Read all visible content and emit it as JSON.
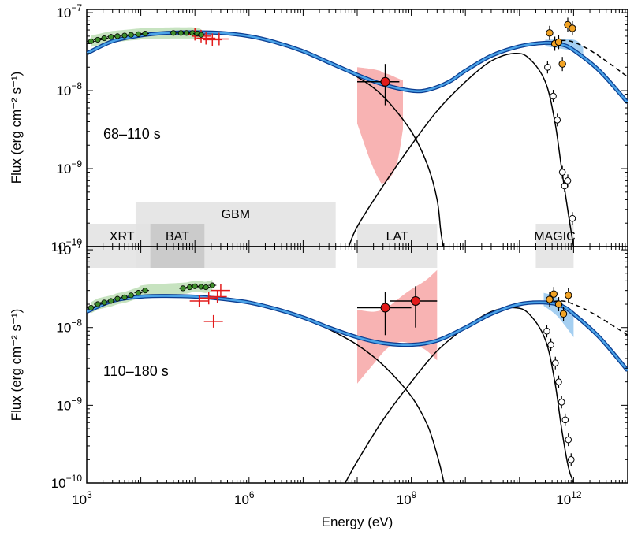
{
  "chart_data": {
    "type": "line",
    "xlabel": "Energy (eV)",
    "ylabel_html": "Flux (erg cm⁻² s⁻¹)",
    "x_ticks": [
      {
        "base": "10",
        "exp": "3",
        "value": 1000
      },
      {
        "base": "10",
        "exp": "6",
        "value": 1000000
      },
      {
        "base": "10",
        "exp": "9",
        "value": 1000000000
      },
      {
        "base": "10",
        "exp": "12",
        "value": 1000000000000
      }
    ],
    "y_ticks": [
      {
        "base": "10",
        "exp": "−10",
        "value": 1e-10
      },
      {
        "base": "10",
        "exp": "−9",
        "value": 1e-09
      },
      {
        "base": "10",
        "exp": "−8",
        "value": 1e-08
      },
      {
        "base": "10",
        "exp": "−7",
        "value": 1e-07
      }
    ],
    "xlim": [
      1000,
      10000000000000
    ],
    "ylim": [
      1e-10,
      1.1e-07
    ],
    "instrument_bands": [
      {
        "name": "XRT",
        "range": [
          1000,
          20000
        ],
        "level": "upper"
      },
      {
        "name": "GBM",
        "range": [
          8000,
          40000000
        ],
        "level": "upper"
      },
      {
        "name": "BAT",
        "range": [
          15000,
          150000
        ],
        "level": "lower"
      },
      {
        "name": "LAT",
        "range": [
          100000000,
          3000000000
        ],
        "level": "upper"
      },
      {
        "name": "MAGIC",
        "range": [
          200000000000,
          1000000000000
        ],
        "level": "upper"
      }
    ],
    "panels": [
      {
        "label": "68–110 s",
        "total_model": {
          "name": "Total (synchrotron + IC)",
          "x": [
            1000,
            3000,
            10000,
            30000,
            100000,
            300000,
            1000000,
            3000000,
            10000000,
            30000000,
            100000000,
            300000000,
            1000000000,
            2000000000,
            5000000000,
            10000000000,
            30000000000,
            100000000000,
            300000000000,
            600000000000,
            1000000000000,
            3000000000000,
            10000000000000
          ],
          "y": [
            3e-08,
            4.3e-08,
            5.1e-08,
            5.5e-08,
            5.6e-08,
            5.5e-08,
            5e-08,
            4.2e-08,
            3.2e-08,
            2.3e-08,
            1.6e-08,
            1.2e-08,
            1e-08,
            1.02e-08,
            1.3e-08,
            1.8e-08,
            2.8e-08,
            3.7e-08,
            4.1e-08,
            3.9e-08,
            3.3e-08,
            1.8e-08,
            7e-09
          ]
        },
        "synchrotron": {
          "name": "Synchrotron",
          "x": [
            1000,
            3000,
            10000,
            30000,
            100000,
            300000,
            1000000,
            3000000,
            10000000,
            30000000,
            100000000,
            300000000,
            1000000000,
            2000000000,
            3000000000,
            3500000000,
            3900000000
          ],
          "y": [
            3e-08,
            4.3e-08,
            5.1e-08,
            5.5e-08,
            5.6e-08,
            5.5e-08,
            5e-08,
            4.2e-08,
            3.2e-08,
            2.3e-08,
            1.5e-08,
            8.5e-09,
            3e-09,
            1.1e-09,
            4e-10,
            1.6e-10,
            1e-10
          ]
        },
        "ic_observed": {
          "name": "IC (observed)",
          "x": [
            70000000,
            100000000,
            300000000,
            1000000000,
            3000000000,
            10000000000,
            30000000000,
            80000000000,
            150000000000,
            300000000000,
            450000000000,
            600000000000,
            800000000000,
            1000000000000
          ],
          "y": [
            1e-10,
            1.8e-10,
            6e-10,
            2e-09,
            5.5e-09,
            1.3e-08,
            2.4e-08,
            3e-08,
            2.6e-08,
            1.3e-08,
            4e-09,
            1e-09,
            2.6e-10,
            1e-10
          ]
        },
        "ic_intrinsic": {
          "name": "IC (intrinsic)",
          "x": [
            300000000000,
            600000000000,
            1000000000000,
            2000000000000,
            4000000000000,
            10000000000000
          ],
          "y": [
            4.1e-08,
            4.4e-08,
            4.2e-08,
            3.3e-08,
            2.4e-08,
            1.5e-08
          ]
        },
        "lat_band": {
          "name": "LAT uncertainty",
          "x": [
            100000000,
            180000000,
            260000000,
            300000000,
            400000000,
            550000000,
            700000000
          ],
          "y_high": [
            2e-08,
            1.9e-08,
            1.8e-08,
            1.7e-08,
            1.6e-08,
            1.45e-08,
            1.35e-08
          ],
          "y_low": [
            3.8e-09,
            1.2e-09,
            7e-10,
            6.5e-10,
            7.5e-10,
            1.2e-09,
            3.2e-09
          ]
        },
        "magic_band": {
          "name": "MAGIC uncertainty",
          "x": [
            300000000000,
            1000000000000,
            1500000000000
          ],
          "y_high": [
            4.5e-08,
            4.5e-08,
            3.6e-08
          ],
          "y_low": [
            3.7e-08,
            3.2e-08,
            2.6e-08
          ]
        },
        "xrt_points": {
          "name": "XRT/BAT",
          "x": [
            1200,
            1600,
            2100,
            2800,
            3700,
            5000,
            6600,
            9000,
            12000,
            40000,
            55000,
            70000,
            90000,
            110000,
            130000
          ],
          "y": [
            4.3e-08,
            4.5e-08,
            4.7e-08,
            4.9e-08,
            5e-08,
            5.1e-08,
            5.2e-08,
            5.3e-08,
            5.4e-08,
            5.5e-08,
            5.5e-08,
            5.5e-08,
            5.5e-08,
            5.4e-08,
            5.2e-08
          ]
        },
        "gbm_points": {
          "name": "GBM",
          "x": [
            100000,
            130000,
            160000,
            210000,
            280000
          ],
          "y": [
            5.3e-08,
            5e-08,
            4.7e-08,
            4.5e-08,
            4.6e-08
          ]
        },
        "lat_points": {
          "name": "LAT",
          "x": [
            330000000
          ],
          "y": [
            1.3e-08
          ],
          "xlow": [
            100000000
          ],
          "xhigh": [
            600000000
          ],
          "ylow": [
            6.5e-09
          ],
          "yhigh": [
            2.2e-08
          ]
        },
        "magic_observed": {
          "name": "MAGIC observed",
          "x": [
            330000000000,
            420000000000,
            500000000000,
            620000000000,
            680000000000,
            780000000000,
            950000000000
          ],
          "y": [
            2e-08,
            8.5e-09,
            4.2e-09,
            9e-10,
            6e-10,
            7e-10,
            2.3e-10
          ]
        },
        "magic_deabsorbed": {
          "name": "MAGIC intrinsic",
          "x": [
            360000000000,
            450000000000,
            530000000000,
            620000000000,
            780000000000,
            950000000000
          ],
          "y": [
            5.5e-08,
            4e-08,
            4.2e-08,
            2.2e-08,
            7e-08,
            6.3e-08
          ]
        }
      },
      {
        "label": "110–180 s",
        "total_model": {
          "name": "Total (synchrotron + IC)",
          "x": [
            1000,
            3000,
            10000,
            30000,
            100000,
            300000,
            1000000,
            3000000,
            10000000,
            30000000,
            100000000,
            300000000,
            1000000000,
            3000000000,
            10000000000,
            30000000000,
            100000000000,
            300000000000,
            600000000000,
            1000000000000,
            3000000000000,
            10000000000000
          ],
          "y": [
            1.6e-08,
            2.2e-08,
            2.5e-08,
            2.55e-08,
            2.5e-08,
            2.35e-08,
            2.1e-08,
            1.75e-08,
            1.35e-08,
            1e-08,
            7.5e-09,
            6.3e-09,
            6e-09,
            6.8e-09,
            1e-08,
            1.5e-08,
            2e-08,
            2.1e-08,
            1.9e-08,
            1.5e-08,
            7.5e-09,
            2.8e-09
          ]
        },
        "synchrotron": {
          "name": "Synchrotron",
          "x": [
            1000,
            3000,
            10000,
            30000,
            100000,
            300000,
            1000000,
            3000000,
            10000000,
            30000000,
            100000000,
            300000000,
            1000000000,
            2000000000,
            3000000000,
            3700000000,
            4000000000
          ],
          "y": [
            1.6e-08,
            2.2e-08,
            2.5e-08,
            2.55e-08,
            2.5e-08,
            2.35e-08,
            2.1e-08,
            1.75e-08,
            1.35e-08,
            9.5e-09,
            6e-09,
            3.3e-09,
            1.3e-09,
            5.5e-10,
            2.3e-10,
            1.3e-10,
            1e-10
          ]
        },
        "ic_observed": {
          "name": "IC (observed)",
          "x": [
            60000000,
            100000000,
            300000000,
            1000000000,
            3000000000,
            10000000000,
            30000000000,
            80000000000,
            150000000000,
            300000000000,
            450000000000,
            600000000000,
            800000000000,
            1000000000000
          ],
          "y": [
            1e-10,
            1.9e-10,
            6.5e-10,
            2e-09,
            5e-09,
            1e-08,
            1.6e-08,
            1.8e-08,
            1.5e-08,
            7e-09,
            2e-09,
            5e-10,
            1.6e-10,
            1e-10
          ]
        },
        "ic_intrinsic": {
          "name": "IC (intrinsic)",
          "x": [
            300000000000,
            600000000000,
            1000000000000,
            2000000000000,
            4000000000000,
            10000000000000
          ],
          "y": [
            2.1e-08,
            2.2e-08,
            2e-08,
            1.6e-08,
            1.2e-08,
            8e-09
          ]
        },
        "lat_band": {
          "name": "LAT uncertainty",
          "x": [
            100000000,
            200000000,
            350000000,
            600000000,
            1000000000,
            1800000000,
            3000000000
          ],
          "y_high": [
            1.7e-08,
            1.6e-08,
            1.8e-08,
            2.4e-08,
            3.1e-08,
            4e-08,
            5.5e-08
          ],
          "y_low": [
            1.9e-09,
            3.4e-09,
            5.3e-09,
            6.5e-09,
            6.2e-09,
            5.2e-09,
            3.8e-09
          ]
        },
        "magic_band": {
          "name": "MAGIC uncertainty",
          "x": [
            280000000000,
            500000000000,
            1000000000000
          ],
          "y_high": [
            2.8e-08,
            2.4e-08,
            1.4e-08
          ],
          "y_low": [
            1.9e-08,
            1.4e-08,
            7.5e-09
          ]
        },
        "xrt_points": {
          "name": "XRT/BAT",
          "x": [
            1200,
            1600,
            2100,
            2800,
            3700,
            5000,
            6600,
            9000,
            12000,
            60000,
            80000,
            100000,
            130000,
            160000,
            210000
          ],
          "y": [
            1.8e-08,
            2e-08,
            2.1e-08,
            2.2e-08,
            2.35e-08,
            2.45e-08,
            2.6e-08,
            2.8e-08,
            3e-08,
            3.2e-08,
            3.3e-08,
            3.4e-08,
            3.35e-08,
            3.3e-08,
            3.5e-08
          ]
        },
        "gbm_points": {
          "name": "GBM",
          "x": [
            120000,
            180000,
            220000,
            260000,
            300000
          ],
          "y": [
            2.2e-08,
            2.4e-08,
            1.2e-08,
            2.5e-08,
            3e-08
          ]
        },
        "lat_points": {
          "name": "LAT",
          "x": [
            330000000,
            1200000000
          ],
          "y": [
            1.8e-08,
            2.2e-08
          ],
          "xlow": [
            100000000,
            400000000
          ],
          "xhigh": [
            1000000000,
            3000000000
          ],
          "ylow": [
            8e-09,
            1e-08
          ],
          "yhigh": [
            2.9e-08,
            3.4e-08
          ]
        },
        "magic_observed": {
          "name": "MAGIC observed",
          "x": [
            320000000000,
            380000000000,
            460000000000,
            530000000000,
            600000000000,
            700000000000,
            800000000000,
            900000000000
          ],
          "y": [
            9e-09,
            6e-09,
            3.5e-09,
            2e-09,
            1.1e-09,
            6.5e-10,
            3.6e-10,
            2e-10
          ]
        },
        "magic_deabsorbed": {
          "name": "MAGIC intrinsic",
          "x": [
            360000000000,
            430000000000,
            530000000000,
            650000000000,
            800000000000
          ],
          "y": [
            2.3e-08,
            2.7e-08,
            2e-08,
            1.5e-08,
            2.6e-08
          ]
        }
      }
    ]
  }
}
